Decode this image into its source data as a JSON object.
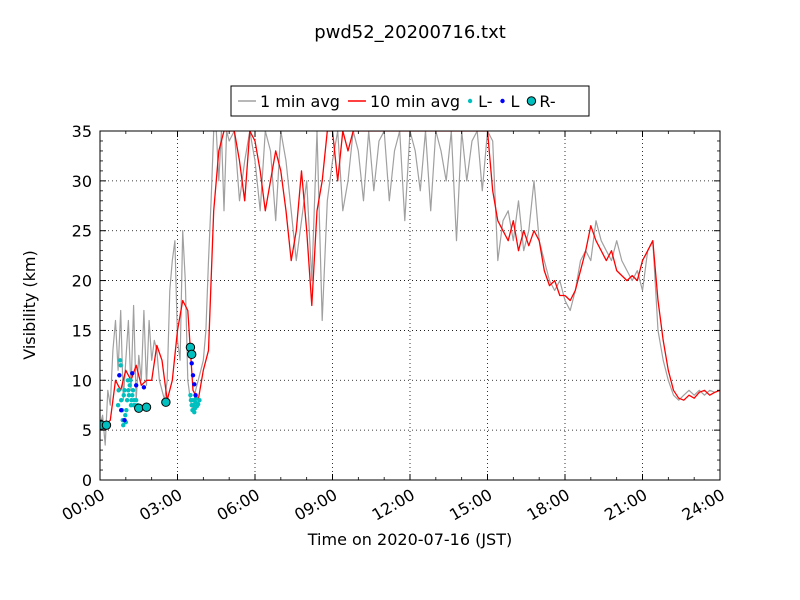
{
  "chart_data": {
    "type": "line",
    "title": "pwd52_20200716.txt",
    "xlabel": "Time on 2020-07-16 (JST)",
    "ylabel": "Visibility (km)",
    "xlim": [
      0,
      24
    ],
    "ylim": [
      0,
      35
    ],
    "x_unit": "hours",
    "x_ticks": [
      0,
      3,
      6,
      9,
      12,
      15,
      18,
      21,
      24
    ],
    "x_tick_labels": [
      "00:00",
      "03:00",
      "06:00",
      "09:00",
      "12:00",
      "15:00",
      "18:00",
      "21:00",
      "24:00"
    ],
    "y_ticks": [
      0,
      5,
      10,
      15,
      20,
      25,
      30,
      35
    ],
    "y_tick_labels": [
      "0",
      "5",
      "10",
      "15",
      "20",
      "25",
      "30",
      "35"
    ],
    "grid": true,
    "legend_position": "top-center",
    "series": [
      {
        "name": "1 min avg",
        "kind": "line",
        "color": "#a0a0a0",
        "x": [
          0.0,
          0.1,
          0.2,
          0.3,
          0.4,
          0.5,
          0.6,
          0.7,
          0.8,
          0.9,
          1.0,
          1.1,
          1.2,
          1.3,
          1.4,
          1.5,
          1.6,
          1.7,
          1.8,
          1.9,
          2.0,
          2.1,
          2.2,
          2.3,
          2.4,
          2.5,
          2.6,
          2.7,
          2.8,
          2.9,
          3.0,
          3.1,
          3.2,
          3.3,
          3.4,
          3.5,
          3.6,
          3.7,
          3.8,
          3.9,
          4.0,
          4.1,
          4.2,
          4.3,
          4.4,
          4.5,
          4.6,
          4.7,
          4.8,
          4.9,
          5.0,
          5.2,
          5.4,
          5.6,
          5.8,
          6.0,
          6.2,
          6.4,
          6.6,
          6.8,
          7.0,
          7.2,
          7.4,
          7.6,
          7.8,
          8.0,
          8.2,
          8.4,
          8.6,
          8.8,
          9.0,
          9.2,
          9.4,
          9.6,
          9.8,
          10.0,
          10.2,
          10.4,
          10.6,
          10.8,
          11.0,
          11.2,
          11.4,
          11.6,
          11.8,
          12.0,
          12.2,
          12.4,
          12.6,
          12.8,
          13.0,
          13.2,
          13.4,
          13.6,
          13.8,
          14.0,
          14.2,
          14.4,
          14.6,
          14.8,
          15.0,
          15.2,
          15.4,
          15.6,
          15.8,
          16.0,
          16.2,
          16.4,
          16.6,
          16.8,
          17.0,
          17.2,
          17.4,
          17.6,
          17.8,
          18.0,
          18.2,
          18.4,
          18.6,
          18.8,
          19.0,
          19.2,
          19.4,
          19.6,
          19.8,
          20.0,
          20.2,
          20.4,
          20.6,
          20.8,
          21.0,
          21.2,
          21.4,
          21.6,
          21.8,
          22.0,
          22.2,
          22.4,
          22.6,
          22.8,
          23.0,
          23.2,
          23.4,
          23.6,
          23.8,
          24.0
        ],
        "y": [
          5.5,
          6.5,
          3.5,
          9,
          7.5,
          13,
          16,
          11,
          17,
          8,
          12,
          16,
          9,
          17.5,
          8,
          12.5,
          10,
          17,
          9.5,
          16,
          12,
          14,
          13,
          10,
          9,
          8,
          10,
          19,
          22,
          24,
          14,
          12,
          25,
          20,
          10,
          8,
          7,
          9,
          10,
          11,
          12,
          15,
          22,
          28,
          35,
          35,
          30,
          35,
          27,
          35,
          34,
          35,
          28,
          32,
          35,
          32,
          27,
          35,
          33,
          26,
          35,
          32,
          27,
          22,
          26,
          30,
          20,
          35,
          16,
          28,
          32,
          35,
          27,
          30,
          35,
          33,
          28,
          35,
          29,
          34,
          35,
          28,
          33,
          35,
          26,
          35,
          33,
          29,
          35,
          27,
          35,
          33,
          30,
          35,
          24,
          35,
          30,
          34,
          35,
          29,
          35,
          34,
          22,
          26,
          27,
          24,
          28,
          23,
          25,
          30,
          24,
          22,
          20,
          19,
          20,
          18,
          17,
          19,
          22,
          23,
          22,
          26,
          24,
          23,
          22,
          24,
          22,
          21,
          20,
          21,
          19,
          23,
          24,
          15,
          12,
          10,
          8.5,
          8,
          8.5,
          9,
          8.5,
          9,
          8.5,
          9,
          8.8,
          9
        ],
        "y_clipped_at_top": true
      },
      {
        "name": "10 min avg",
        "kind": "line",
        "color": "#ff0000",
        "x": [
          0.0,
          0.2,
          0.4,
          0.6,
          0.8,
          1.0,
          1.2,
          1.4,
          1.6,
          1.8,
          2.0,
          2.2,
          2.4,
          2.6,
          2.8,
          3.0,
          3.2,
          3.4,
          3.6,
          3.8,
          4.0,
          4.2,
          4.4,
          4.6,
          4.8,
          5.0,
          5.2,
          5.4,
          5.6,
          5.8,
          6.0,
          6.2,
          6.4,
          6.6,
          6.8,
          7.0,
          7.2,
          7.4,
          7.6,
          7.8,
          8.0,
          8.2,
          8.4,
          8.6,
          8.8,
          9.0,
          9.2,
          9.4,
          9.6,
          9.8,
          10.0,
          10.4,
          10.8,
          11.2,
          11.6,
          12.0,
          12.4,
          12.8,
          13.2,
          13.6,
          14.0,
          14.4,
          14.8,
          15.0,
          15.2,
          15.4,
          15.6,
          15.8,
          16.0,
          16.2,
          16.4,
          16.6,
          16.8,
          17.0,
          17.2,
          17.4,
          17.6,
          17.8,
          18.0,
          18.2,
          18.4,
          18.6,
          18.8,
          19.0,
          19.2,
          19.4,
          19.6,
          19.8,
          20.0,
          20.2,
          20.4,
          20.6,
          20.8,
          21.0,
          21.2,
          21.4,
          21.6,
          21.8,
          22.0,
          22.2,
          22.4,
          22.6,
          22.8,
          23.0,
          23.2,
          23.4,
          23.6,
          23.8,
          24.0
        ],
        "y": [
          5.5,
          5.5,
          6,
          10,
          9,
          11,
          10,
          11.5,
          9.5,
          10,
          10,
          13.5,
          12,
          8,
          10,
          15,
          18,
          17,
          9,
          8,
          11,
          13,
          27,
          33,
          35,
          35,
          35,
          32,
          28,
          35,
          34,
          31,
          27,
          30,
          33,
          31,
          27,
          22,
          25,
          31,
          25,
          17.5,
          27,
          30,
          35,
          35,
          30,
          35,
          33,
          35,
          35,
          35,
          35,
          35,
          35,
          35,
          35,
          35,
          35,
          35,
          35,
          35,
          35,
          35,
          29,
          26,
          25,
          24,
          26,
          23,
          25,
          23.5,
          25,
          24,
          21,
          19.5,
          20,
          18.5,
          18.5,
          18,
          19,
          21,
          23,
          25.5,
          24,
          23,
          22,
          23,
          21,
          20.5,
          20,
          20.5,
          20,
          22,
          23,
          24,
          18,
          14,
          11,
          9,
          8.2,
          8,
          8.5,
          8.2,
          8.8,
          9,
          8.5,
          8.8,
          9
        ],
        "y_clipped_at_top": true
      },
      {
        "name": "L-",
        "kind": "points",
        "color": "#00bfbf",
        "x": [
          0.7,
          0.72,
          0.75,
          0.78,
          0.8,
          0.82,
          0.85,
          0.88,
          0.9,
          0.92,
          0.95,
          0.98,
          1.0,
          1.02,
          1.05,
          1.08,
          1.1,
          1.12,
          1.15,
          1.18,
          1.2,
          1.22,
          1.25,
          1.28,
          1.3,
          1.32,
          1.35,
          1.4,
          1.45,
          3.5,
          3.52,
          3.55,
          3.58,
          3.6,
          3.62,
          3.65,
          3.68,
          3.7,
          3.72,
          3.75,
          3.8,
          3.85
        ],
        "y": [
          7.5,
          9,
          10.5,
          12,
          11.5,
          8,
          7,
          6,
          5.5,
          8.5,
          9,
          6.5,
          5.8,
          7,
          8,
          10,
          9,
          8.5,
          9.5,
          10,
          7.5,
          8,
          8.5,
          9,
          7.5,
          8,
          7.5,
          8,
          7.5,
          8.5,
          8,
          7.5,
          7,
          8,
          7.5,
          6.8,
          7.2,
          7.8,
          8.2,
          7.4,
          7.6,
          8
        ]
      },
      {
        "name": "L",
        "kind": "points",
        "color": "#0000ff",
        "x": [
          0.75,
          0.82,
          0.95,
          1.25,
          1.4,
          1.7,
          3.55,
          3.6,
          3.65,
          3.7
        ],
        "y": [
          10.5,
          7,
          6,
          10.7,
          9.5,
          9.3,
          11.7,
          10.5,
          9.6,
          8.5
        ]
      },
      {
        "name": "R-",
        "kind": "markers",
        "color": "#00bfbf",
        "edge_color": "#000000",
        "x": [
          0.05,
          0.25,
          1.5,
          1.8,
          2.55,
          3.5,
          3.55
        ],
        "y": [
          5.5,
          5.5,
          7.2,
          7.3,
          7.8,
          13.3,
          12.6
        ]
      }
    ]
  }
}
